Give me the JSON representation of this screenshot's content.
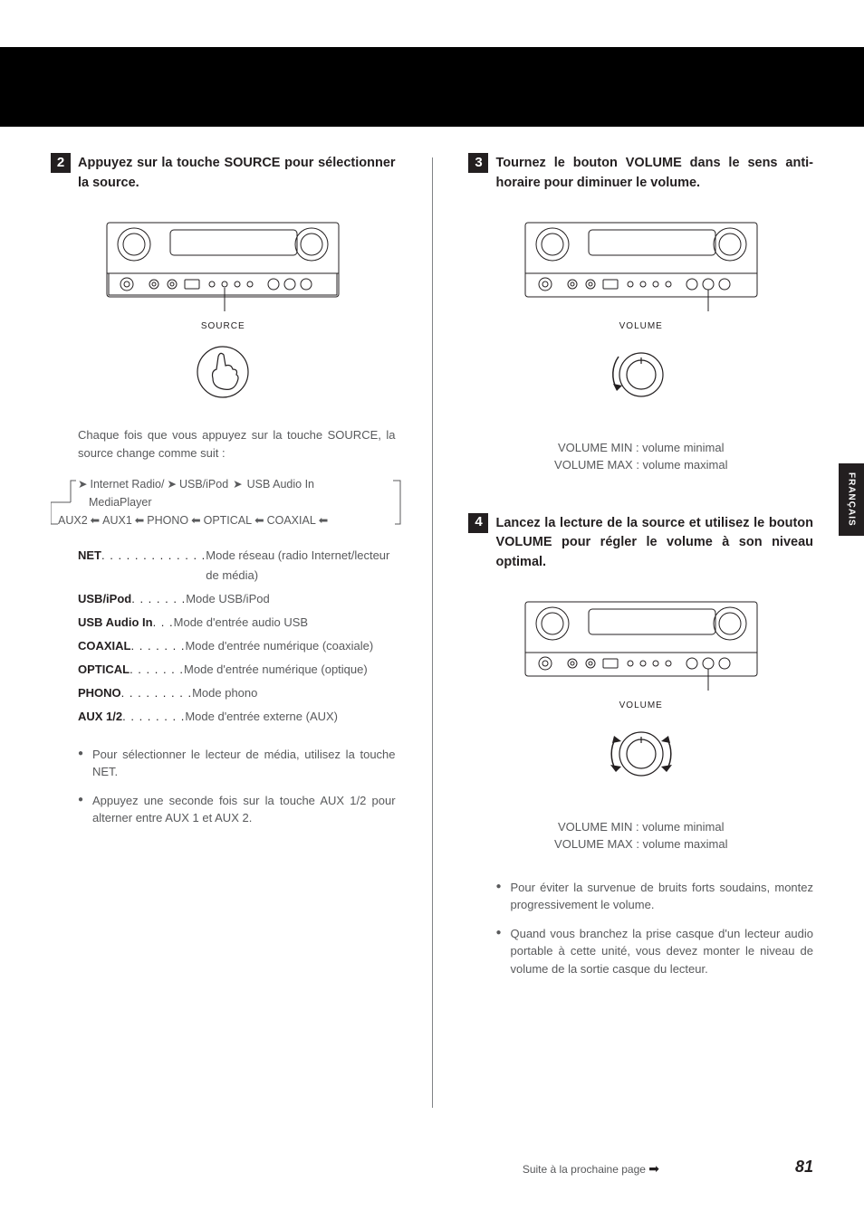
{
  "side_tab": "FRANÇAIS",
  "footer": {
    "continue": "Suite à la prochaine page",
    "page": "81"
  },
  "step2": {
    "num": "2",
    "head": "Appuyez sur la touche SOURCE pour sélectionner la source.",
    "fig_label": "SOURCE",
    "intro": "Chaque fois que vous appuyez sur la touche SOURCE, la source change comme suit :",
    "flow_line1_a": "Internet Radio/",
    "flow_line1_b": "USB/iPod",
    "flow_line1_c": "USB Audio In",
    "flow_line2": "MediaPlayer",
    "flow_line3_a": "AUX2",
    "flow_line3_b": "AUX1",
    "flow_line3_c": "PHONO",
    "flow_line3_d": "OPTICAL",
    "flow_line3_e": "COAXIAL",
    "modes": [
      {
        "key": "NET",
        "dots": " . . . . . . . . . . . . .",
        "val": "Mode réseau (radio Internet/lecteur de média)"
      },
      {
        "key": "USB/iPod",
        "dots": " . . . . . . .",
        "val": "Mode USB/iPod"
      },
      {
        "key": "USB Audio In",
        "dots": " . . .",
        "val": "Mode d'entrée audio USB"
      },
      {
        "key": "COAXIAL",
        "dots": "  . . . . . . .",
        "val": "Mode d'entrée numérique (coaxiale)"
      },
      {
        "key": "OPTICAL",
        "dots": "  . . . . . . .",
        "val": "Mode d'entrée numérique (optique)"
      },
      {
        "key": "PHONO",
        "dots": " . . . . . . . . .",
        "val": "Mode phono"
      },
      {
        "key": "AUX 1/2",
        "dots": "  . . . . . . . .",
        "val": "Mode d'entrée externe (AUX)"
      }
    ],
    "bullets": [
      "Pour sélectionner le lecteur de média, utilisez la touche NET.",
      "Appuyez une seconde fois sur la touche AUX 1/2 pour alterner entre AUX 1 et AUX 2."
    ]
  },
  "step3": {
    "num": "3",
    "head": "Tournez le bouton VOLUME dans le sens anti-horaire pour diminuer le volume.",
    "fig_label": "VOLUME",
    "cap1": "VOLUME MIN : volume minimal",
    "cap2": "VOLUME MAX : volume maximal"
  },
  "step4": {
    "num": "4",
    "head": "Lancez la lecture de la source et utilisez le bouton VOLUME pour régler le volume à son niveau optimal.",
    "fig_label": "VOLUME",
    "cap1": "VOLUME MIN : volume minimal",
    "cap2": "VOLUME MAX : volume maximal",
    "bullets": [
      "Pour éviter la survenue de bruits forts soudains, montez progressivement le volume.",
      "Quand vous branchez la prise casque d'un lecteur audio portable à cette unité, vous devez monter le niveau de volume de la sortie casque du lecteur."
    ]
  },
  "svg": {
    "device_stroke": "#231f20",
    "device_fill": "#ffffff"
  }
}
